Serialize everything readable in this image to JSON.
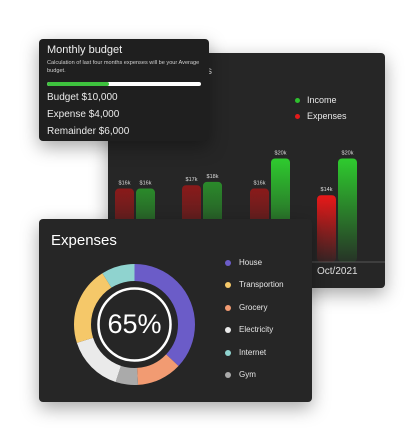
{
  "income_chart": {
    "legend": [
      {
        "label": "Income",
        "color": "#2ec02e"
      },
      {
        "label": "Expenses",
        "color": "#e21a1a"
      }
    ],
    "month_label": "Oct/2021",
    "partial_header": "s"
  },
  "budget": {
    "title": "Monthly budget",
    "description": "Calculation of last four months expenses will be your Average budget.",
    "progress": 0.4,
    "lines": [
      "Budget  $10,000",
      "Expense $4,000",
      "Remainder $6,000"
    ]
  },
  "expenses": {
    "title": "Expenses",
    "center_text": "65%",
    "categories": [
      {
        "label": "House",
        "color": "#6b5cc8"
      },
      {
        "label": "Transportion",
        "color": "#f5c869"
      },
      {
        "label": "Grocery",
        "color": "#f29b72"
      },
      {
        "label": "Electricity",
        "color": "#eaeaea"
      },
      {
        "label": "Internet",
        "color": "#8fd3cf"
      },
      {
        "label": "Gym",
        "color": "#aaaaaa"
      }
    ]
  },
  "chart_data": {
    "type": "bar",
    "categories": [
      "",
      "",
      "",
      "",
      "Oct/2021"
    ],
    "series": [
      {
        "name": "Expenses",
        "values": [
          16,
          17,
          16,
          14,
          null
        ]
      },
      {
        "name": "Income",
        "values": [
          16,
          18,
          20,
          20,
          null
        ]
      }
    ],
    "data_labels": [
      "$16k",
      "$16k",
      "$17k",
      "$18k",
      "$16k",
      "$20k",
      "$14k",
      "$20k"
    ],
    "ylim": [
      0,
      22
    ]
  }
}
